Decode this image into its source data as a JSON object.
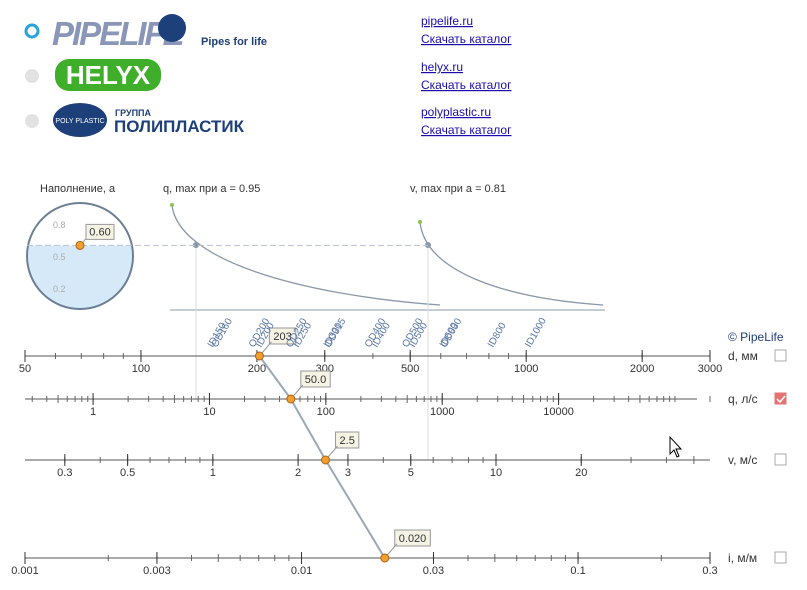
{
  "brands": [
    {
      "logo": "PIPELIFE",
      "tagline": "Pipes for life",
      "site": "pipelife.ru",
      "catalog": "Скачать каталог",
      "selected": true
    },
    {
      "logo": "HELYX",
      "site": "helyx.ru",
      "catalog": "Скачать каталог",
      "selected": false
    },
    {
      "logo_small": "ГРУППА",
      "logo": "ПОЛИПЛАСТИК",
      "badge": "POLY PLASTIC",
      "site": "polyplastic.ru",
      "catalog": "Скачать каталог",
      "selected": false
    }
  ],
  "nomogram": {
    "copyright": "© PipeLife",
    "filling": {
      "title": "Наполнение, а",
      "ticks": [
        0.8,
        0.5,
        0.2
      ],
      "value": 0.6,
      "value_label": "0.60"
    },
    "q_curve_label": "q, max при a = 0.95",
    "v_curve_label": "v, max при a = 0.81",
    "pipe_sizes": [
      "OD160",
      "ID150",
      "OD200",
      "ID200",
      "OD250",
      "ID250",
      "OD315",
      "ID300",
      "OD400",
      "ID400",
      "OD500",
      "ID500",
      "OD630",
      "ID600",
      "ID800",
      "ID1000"
    ],
    "scales": [
      {
        "name": "d, мм",
        "lim": [
          50,
          3000
        ],
        "ticks": [
          50,
          100,
          200,
          300,
          500,
          1000,
          2000,
          3000
        ],
        "value": 203,
        "value_label": "203",
        "checked": false
      },
      {
        "name": "q, л/с",
        "lim": [
          0.26,
          200000
        ],
        "ticks": [
          1,
          10,
          100,
          1000,
          10000
        ],
        "value": 50,
        "value_label": "50.0",
        "checked": true
      },
      {
        "name": "v, м/с",
        "lim": [
          0.217,
          57
        ],
        "ticks": [
          0.3,
          0.5,
          1,
          2,
          3,
          5,
          10,
          20
        ],
        "value": 2.5,
        "value_label": "2.5",
        "checked": false
      },
      {
        "name": "i, м/м",
        "lim": [
          0.001,
          0.3
        ],
        "ticks": [
          0.001,
          0.003,
          0.01,
          0.03,
          0.1,
          0.3
        ],
        "value": 0.02,
        "value_label": "0.020",
        "checked": false
      }
    ]
  }
}
